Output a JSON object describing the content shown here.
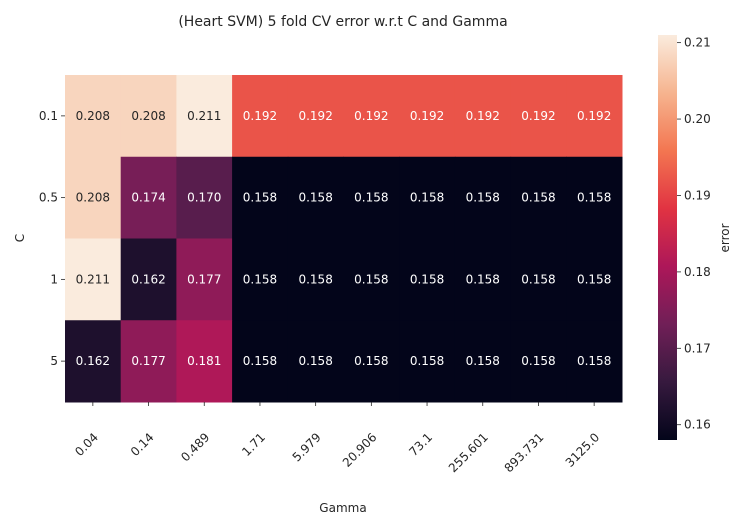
{
  "chart_data": {
    "type": "heatmap",
    "title": "(Heart SVM) 5 fold CV error w.r.t C and Gamma",
    "xlabel": "Gamma",
    "ylabel": "C",
    "x": [
      "0.04",
      "0.14",
      "0.489",
      "1.71",
      "5.979",
      "20.906",
      "73.1",
      "255.601",
      "893.731",
      "3125.0"
    ],
    "y": [
      "0.1",
      "0.5",
      "1",
      "5"
    ],
    "values": [
      [
        0.208,
        0.208,
        0.211,
        0.192,
        0.192,
        0.192,
        0.192,
        0.192,
        0.192,
        0.192
      ],
      [
        0.208,
        0.174,
        0.17,
        0.158,
        0.158,
        0.158,
        0.158,
        0.158,
        0.158,
        0.158
      ],
      [
        0.211,
        0.162,
        0.177,
        0.158,
        0.158,
        0.158,
        0.158,
        0.158,
        0.158,
        0.158
      ],
      [
        0.162,
        0.177,
        0.181,
        0.158,
        0.158,
        0.158,
        0.158,
        0.158,
        0.158,
        0.158
      ]
    ],
    "annotations": [
      [
        "0.208",
        "0.208",
        "0.211",
        "0.192",
        "0.192",
        "0.192",
        "0.192",
        "0.192",
        "0.192",
        "0.192"
      ],
      [
        "0.208",
        "0.174",
        "0.170",
        "0.158",
        "0.158",
        "0.158",
        "0.158",
        "0.158",
        "0.158",
        "0.158"
      ],
      [
        "0.211",
        "0.162",
        "0.177",
        "0.158",
        "0.158",
        "0.158",
        "0.158",
        "0.158",
        "0.158",
        "0.158"
      ],
      [
        "0.162",
        "0.177",
        "0.181",
        "0.158",
        "0.158",
        "0.158",
        "0.158",
        "0.158",
        "0.158",
        "0.158"
      ]
    ],
    "colorbar": {
      "label": "error",
      "range": [
        0.158,
        0.211
      ],
      "ticks": [
        "0.16",
        "0.17",
        "0.18",
        "0.19",
        "0.20",
        "0.21"
      ],
      "tick_values": [
        0.16,
        0.17,
        0.18,
        0.19,
        0.2,
        0.21
      ],
      "colormap": "rocket",
      "stops": [
        "#03051a",
        "#36193e",
        "#701f57",
        "#ad1759",
        "#e13342",
        "#f37651",
        "#f6b48f",
        "#faebdd"
      ]
    },
    "grid": false,
    "legend_position": "right"
  }
}
